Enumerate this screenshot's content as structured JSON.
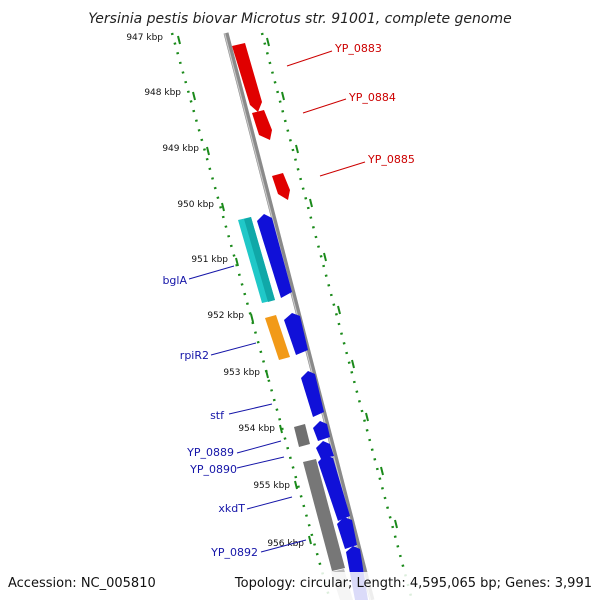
{
  "title": "Yersinia pestis biovar Microtus str. 91001, complete genome",
  "footer": {
    "accession": "Accession: NC_005810",
    "summary": "Topology: circular; Length: 4,595,065 bp; Genes: 3,991"
  },
  "kbp_labels": [
    "947 kbp",
    "948 kbp",
    "949 kbp",
    "950 kbp",
    "951 kbp",
    "952 kbp",
    "953 kbp",
    "954 kbp",
    "955 kbp",
    "956 kbp"
  ],
  "gene_labels_red": [
    "YP_0883",
    "YP_0884",
    "YP_0885"
  ],
  "gene_labels_blue": [
    "bglA",
    "rpiR2",
    "stf",
    "YP_0889",
    "YP_0890",
    "xkdT",
    "YP_0892"
  ],
  "colors": {
    "red": "#e00000",
    "blue": "#1010d8",
    "cyan": "#20c8c8",
    "orange": "#f29a18",
    "gray": "#808080",
    "ticks": "#1a8a1a",
    "label_red": "#cc0000",
    "label_blue": "#1515a8"
  }
}
